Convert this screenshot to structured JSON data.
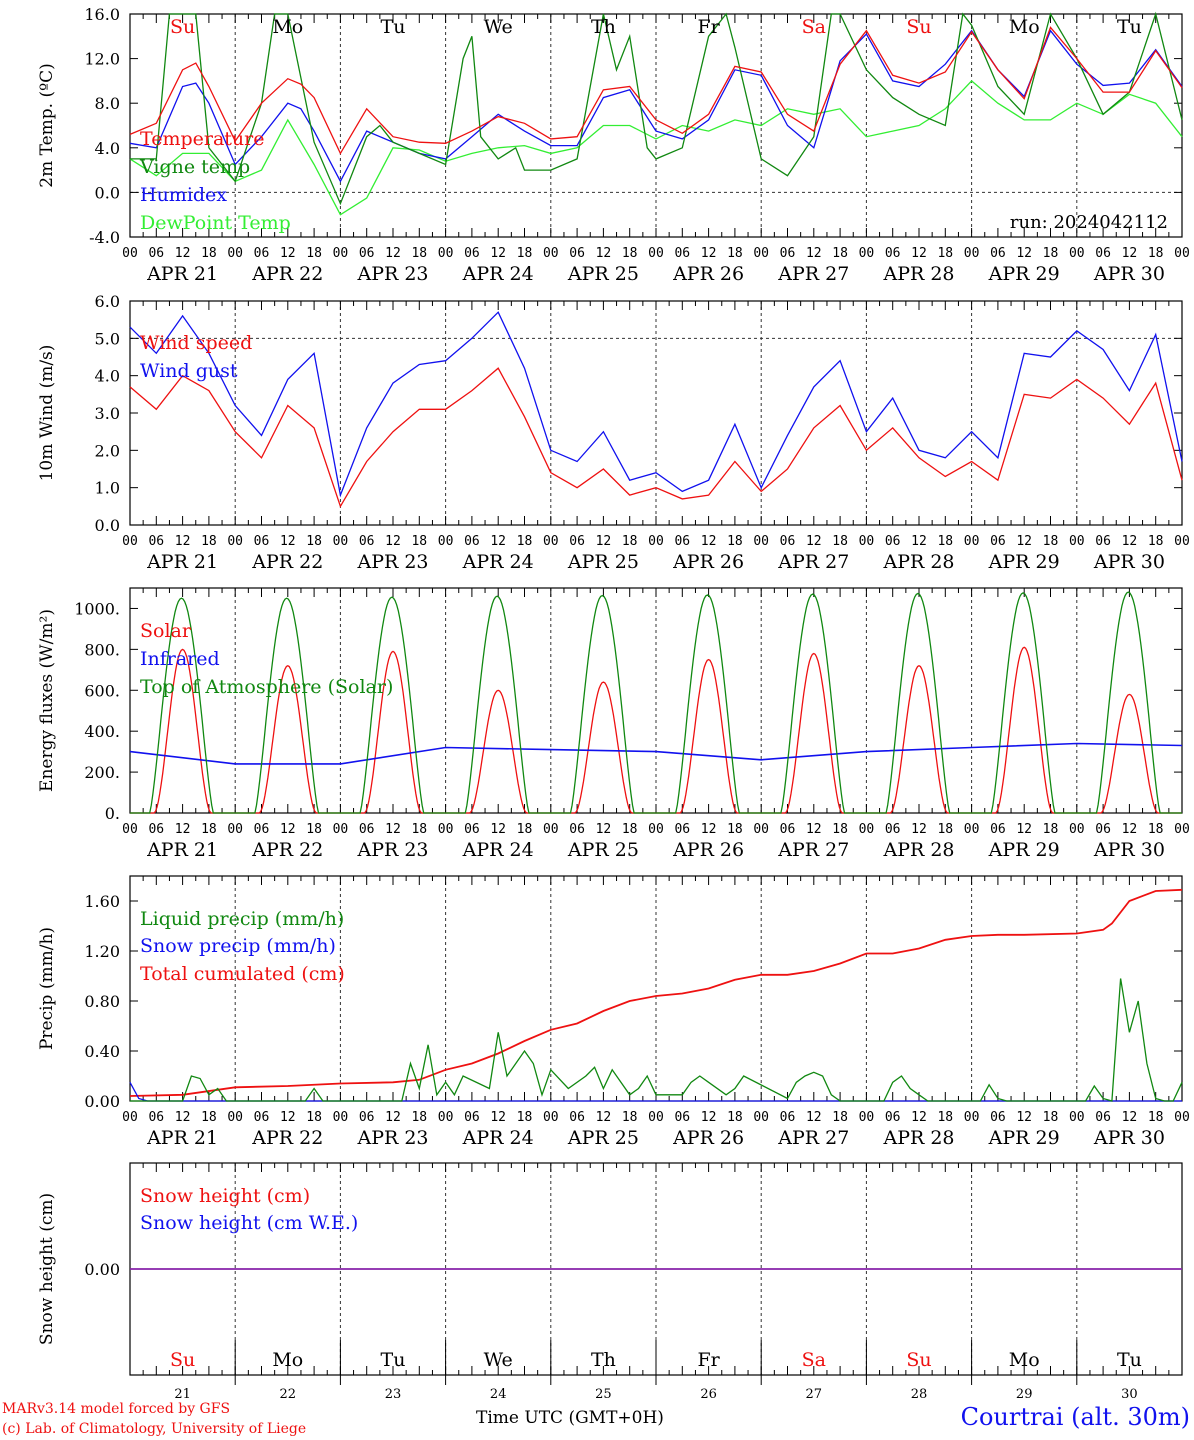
{
  "meta": {
    "run": "run: 2024042112",
    "model": "MARv3.14 model forced by GFS",
    "lab": "(c) Lab. of Climatology, University of Liege",
    "time_label": "Time UTC (GMT+0H)",
    "station": "Courtrai (alt. 30m)"
  },
  "hours": [
    "00",
    "06",
    "12",
    "18"
  ],
  "final_hour": "00",
  "dates": [
    "APR 21",
    "APR 22",
    "APR 23",
    "APR 24",
    "APR 25",
    "APR 26",
    "APR 27",
    "APR 28",
    "APR 29",
    "APR 30"
  ],
  "weekdays": [
    "Su",
    "Mo",
    "Tu",
    "We",
    "Th",
    "Fr",
    "Sa",
    "Su",
    "Mo",
    "Tu"
  ],
  "day_numbers": [
    "21",
    "22",
    "23",
    "24",
    "25",
    "26",
    "27",
    "28",
    "29",
    "30"
  ],
  "colors": {
    "red": "#ee1111",
    "green": "#118811",
    "blue": "#1111ee",
    "light_green": "#33ee33",
    "purple": "#8822aa",
    "weekend": "#ee1111",
    "weekday": "#000000"
  },
  "chart_data": [
    {
      "id": "temp",
      "type": "line",
      "ylabel": "2m Temp. (ºC)",
      "ylim": [
        -4,
        16
      ],
      "yticks": [
        "-4.0",
        "0.0",
        "4.0",
        "8.0",
        "12.0",
        "16.0"
      ],
      "ytick_values": [
        -4,
        0,
        4,
        8,
        12,
        16
      ],
      "dashed_y": 0,
      "x_unit": "hours since 2024-04-21 00 UTC",
      "series": [
        {
          "name": "Temperature",
          "color": "red",
          "x": [
            0,
            6,
            12,
            15,
            18,
            24,
            30,
            36,
            39,
            42,
            48,
            54,
            60,
            66,
            72,
            78,
            84,
            90,
            96,
            102,
            108,
            114,
            120,
            126,
            132,
            138,
            144,
            150,
            156,
            162,
            168,
            174,
            180,
            186,
            192,
            198,
            204,
            210,
            216,
            222,
            228,
            234,
            240
          ],
          "y": [
            5.2,
            6.2,
            11.0,
            11.6,
            9.5,
            4.6,
            8.0,
            10.2,
            9.7,
            8.5,
            3.5,
            7.5,
            5.0,
            4.5,
            4.4,
            5.5,
            6.8,
            6.2,
            4.8,
            5.0,
            9.2,
            9.5,
            6.5,
            5.3,
            7.0,
            11.3,
            10.8,
            7.0,
            5.5,
            11.5,
            14.5,
            10.5,
            9.8,
            10.8,
            14.4,
            11.0,
            8.4,
            14.8,
            12.0,
            9.0,
            9.0,
            12.7,
            9.4
          ]
        },
        {
          "name": "Vigne temp",
          "color": "green",
          "x": [
            0,
            6,
            9,
            12,
            15,
            18,
            24,
            30,
            33,
            36,
            42,
            48,
            54,
            57,
            60,
            66,
            72,
            76,
            78,
            80,
            84,
            88,
            90,
            96,
            102,
            108,
            111,
            114,
            118,
            120,
            126,
            132,
            136,
            138,
            144,
            150,
            156,
            160,
            162,
            168,
            174,
            180,
            186,
            190,
            192,
            198,
            204,
            210,
            216,
            222,
            228,
            234,
            240
          ],
          "y": [
            3.0,
            3.0,
            16,
            16,
            16,
            4.0,
            1.0,
            8.0,
            16,
            16,
            4.5,
            -1.0,
            5.0,
            6.0,
            4.5,
            3.5,
            2.5,
            12,
            14,
            5.0,
            3.0,
            4.0,
            2.0,
            2.0,
            3.0,
            16,
            11,
            14,
            4.0,
            3.0,
            4.0,
            14,
            16,
            13,
            3.0,
            1.5,
            5.0,
            16,
            16,
            11,
            8.5,
            7.0,
            6.0,
            16,
            15,
            9.5,
            7.0,
            16,
            12,
            7.0,
            9.0,
            16,
            6.5
          ]
        },
        {
          "name": "Humidex",
          "color": "blue",
          "x": [
            0,
            6,
            12,
            15,
            18,
            24,
            30,
            36,
            39,
            42,
            48,
            54,
            60,
            66,
            72,
            78,
            84,
            90,
            96,
            102,
            108,
            114,
            120,
            126,
            132,
            138,
            144,
            150,
            156,
            162,
            168,
            174,
            180,
            186,
            192,
            198,
            204,
            210,
            216,
            222,
            228,
            234,
            240
          ],
          "y": [
            4.4,
            4.0,
            9.5,
            9.8,
            8.0,
            2.5,
            5.0,
            8.0,
            7.5,
            5.5,
            1.0,
            5.5,
            4.5,
            3.5,
            3.0,
            5.0,
            7.0,
            5.5,
            4.2,
            4.2,
            8.5,
            9.2,
            5.5,
            4.8,
            6.5,
            11.0,
            10.5,
            6.0,
            4.0,
            11.8,
            14.2,
            10.0,
            9.5,
            11.5,
            14.5,
            11.0,
            8.6,
            14.5,
            11.5,
            9.6,
            9.8,
            12.8,
            9.5
          ]
        },
        {
          "name": "DewPoint Temp",
          "color": "light_green",
          "x": [
            0,
            6,
            12,
            18,
            24,
            30,
            36,
            42,
            48,
            54,
            60,
            66,
            72,
            78,
            84,
            90,
            96,
            102,
            108,
            114,
            120,
            126,
            132,
            138,
            144,
            150,
            156,
            162,
            168,
            174,
            180,
            186,
            192,
            198,
            204,
            210,
            216,
            222,
            228,
            234,
            240
          ],
          "y": [
            3.0,
            1.5,
            3.5,
            3.5,
            1.0,
            2.0,
            6.5,
            2.5,
            -2.0,
            -0.5,
            4.0,
            3.8,
            2.8,
            3.5,
            4.0,
            4.2,
            3.5,
            4.0,
            6.0,
            6.0,
            4.8,
            6.0,
            5.5,
            6.5,
            6.0,
            7.5,
            7.0,
            7.5,
            5.0,
            5.5,
            6.0,
            7.5,
            10.0,
            8.0,
            6.5,
            6.5,
            8.0,
            7.0,
            8.8,
            8.0,
            5.0
          ]
        }
      ]
    },
    {
      "id": "wind",
      "type": "line",
      "ylabel": "10m Wind (m/s)",
      "ylim": [
        0,
        6
      ],
      "yticks": [
        "0.0",
        "1.0",
        "2.0",
        "3.0",
        "4.0",
        "5.0",
        "6.0"
      ],
      "ytick_values": [
        0,
        1,
        2,
        3,
        4,
        5,
        6
      ],
      "dashed_y": 5,
      "x_unit": "hours since 2024-04-21 00 UTC",
      "series": [
        {
          "name": "Wind speed",
          "color": "red",
          "x": [
            0,
            6,
            12,
            18,
            24,
            30,
            36,
            42,
            48,
            54,
            60,
            66,
            72,
            78,
            84,
            90,
            96,
            102,
            108,
            114,
            120,
            126,
            132,
            138,
            144,
            150,
            156,
            162,
            168,
            174,
            180,
            186,
            192,
            198,
            204,
            210,
            216,
            222,
            228,
            234,
            240
          ],
          "y": [
            3.7,
            3.1,
            4.0,
            3.6,
            2.5,
            1.8,
            3.2,
            2.6,
            0.5,
            1.7,
            2.5,
            3.1,
            3.1,
            3.6,
            4.2,
            2.9,
            1.4,
            1.0,
            1.5,
            0.8,
            1.0,
            0.7,
            0.8,
            1.7,
            0.9,
            1.5,
            2.6,
            3.2,
            2.0,
            2.6,
            1.8,
            1.3,
            1.7,
            1.2,
            3.5,
            3.4,
            3.9,
            3.4,
            2.7,
            3.8,
            1.2
          ]
        },
        {
          "name": "Wind gust",
          "color": "blue",
          "x": [
            0,
            6,
            12,
            18,
            24,
            30,
            36,
            42,
            48,
            54,
            60,
            66,
            72,
            78,
            84,
            90,
            96,
            102,
            108,
            114,
            120,
            126,
            132,
            138,
            144,
            150,
            156,
            162,
            168,
            174,
            180,
            186,
            192,
            198,
            204,
            210,
            216,
            222,
            228,
            234,
            240
          ],
          "y": [
            5.3,
            4.6,
            5.6,
            4.6,
            3.2,
            2.4,
            3.9,
            4.6,
            0.8,
            2.6,
            3.8,
            4.3,
            4.4,
            5.0,
            5.7,
            4.2,
            2.0,
            1.7,
            2.5,
            1.2,
            1.4,
            0.9,
            1.2,
            2.7,
            1.0,
            2.4,
            3.7,
            4.4,
            2.5,
            3.4,
            2.0,
            1.8,
            2.5,
            1.8,
            4.6,
            4.5,
            5.2,
            4.7,
            3.6,
            5.1,
            1.7
          ]
        }
      ]
    },
    {
      "id": "energy",
      "type": "line",
      "ylabel": "Energy fluxes (W/m²)",
      "ylim": [
        0,
        1100
      ],
      "yticks": [
        "0.",
        "200.",
        "400.",
        "600.",
        "800.",
        "1000."
      ],
      "ytick_values": [
        0,
        200,
        400,
        600,
        800,
        1000
      ],
      "x_unit": "hours since 2024-04-21 00 UTC",
      "series": [
        {
          "name": "Solar",
          "color": "red",
          "daily_peak": [
            800,
            720,
            790,
            600,
            640,
            750,
            780,
            720,
            810,
            580
          ]
        },
        {
          "name": "Infrared",
          "color": "blue",
          "x": [
            0,
            24,
            48,
            72,
            96,
            120,
            144,
            168,
            192,
            216,
            240
          ],
          "y": [
            300,
            240,
            240,
            320,
            310,
            300,
            260,
            300,
            320,
            340,
            330
          ]
        },
        {
          "name": "Top of Atmosphere (Solar)",
          "color": "green",
          "daily_peak": [
            1050,
            1050,
            1055,
            1060,
            1063,
            1066,
            1070,
            1073,
            1076,
            1080
          ]
        }
      ]
    },
    {
      "id": "precip",
      "type": "line",
      "ylabel": "Precip (mm/h)",
      "ylim": [
        0,
        1.8
      ],
      "yticks": [
        "0.00",
        "0.40",
        "0.80",
        "1.20",
        "1.60"
      ],
      "ytick_values": [
        0,
        0.4,
        0.8,
        1.2,
        1.6
      ],
      "x_unit": "hours since 2024-04-21 00 UTC",
      "series": [
        {
          "name": "Liquid precip (mm/h)",
          "color": "green",
          "x": [
            0,
            12,
            14,
            16,
            18,
            20,
            22,
            24,
            40,
            42,
            44,
            62,
            64,
            66,
            68,
            70,
            72,
            74,
            76,
            82,
            84,
            86,
            90,
            92,
            94,
            96,
            100,
            104,
            106,
            108,
            110,
            114,
            116,
            118,
            120,
            126,
            128,
            130,
            132,
            136,
            138,
            140,
            150,
            152,
            154,
            156,
            158,
            160,
            162,
            172,
            174,
            176,
            178,
            180,
            182,
            184,
            194,
            196,
            198,
            200,
            218,
            220,
            222,
            224,
            226,
            228,
            230,
            232,
            234,
            236,
            238,
            240
          ],
          "y": [
            0,
            0,
            0.2,
            0.18,
            0.05,
            0.1,
            0,
            0,
            0,
            0.1,
            0,
            0,
            0.3,
            0.1,
            0.45,
            0.05,
            0.15,
            0.05,
            0.2,
            0.1,
            0.55,
            0.2,
            0.4,
            0.3,
            0.05,
            0.25,
            0.1,
            0.2,
            0.27,
            0.1,
            0.25,
            0.05,
            0.1,
            0.2,
            0.05,
            0.05,
            0.15,
            0.2,
            0.15,
            0.05,
            0.1,
            0.2,
            0.02,
            0.15,
            0.2,
            0.23,
            0.2,
            0.05,
            0,
            0,
            0.15,
            0.2,
            0.1,
            0.05,
            0,
            0,
            0,
            0.13,
            0.02,
            0,
            0,
            0.12,
            0.02,
            0,
            0.98,
            0.55,
            0.8,
            0.3,
            0.02,
            0,
            0,
            0.15
          ]
        },
        {
          "name": "Snow precip (mm/h)",
          "color": "blue",
          "x": [
            0,
            2,
            4,
            240
          ],
          "y": [
            0.15,
            0.02,
            0,
            0
          ]
        },
        {
          "name": "Total cumulated (cm)",
          "color": "red",
          "x": [
            0,
            12,
            24,
            36,
            48,
            60,
            66,
            72,
            78,
            84,
            90,
            96,
            102,
            108,
            114,
            120,
            126,
            132,
            138,
            144,
            150,
            156,
            162,
            168,
            174,
            180,
            186,
            192,
            198,
            204,
            216,
            222,
            224,
            228,
            234,
            240
          ],
          "y": [
            0.04,
            0.05,
            0.11,
            0.12,
            0.14,
            0.15,
            0.17,
            0.25,
            0.3,
            0.38,
            0.48,
            0.57,
            0.62,
            0.72,
            0.8,
            0.84,
            0.86,
            0.9,
            0.97,
            1.01,
            1.01,
            1.04,
            1.1,
            1.18,
            1.18,
            1.22,
            1.29,
            1.32,
            1.33,
            1.33,
            1.34,
            1.37,
            1.42,
            1.6,
            1.68,
            1.69
          ]
        }
      ]
    },
    {
      "id": "snow",
      "type": "line",
      "ylabel": "Snow height (cm)",
      "ylim": [
        -1,
        1
      ],
      "yticks": [
        "0.00"
      ],
      "ytick_values": [
        0
      ],
      "x_unit": "hours since 2024-04-21 00 UTC",
      "series": [
        {
          "name": "Snow height (cm)",
          "color": "red",
          "x": [
            0,
            240
          ],
          "y": [
            0,
            0
          ]
        },
        {
          "name": "Snow height (cm W.E.)",
          "color": "blue",
          "x": [
            0,
            240
          ],
          "y": [
            0,
            0
          ]
        }
      ]
    }
  ]
}
